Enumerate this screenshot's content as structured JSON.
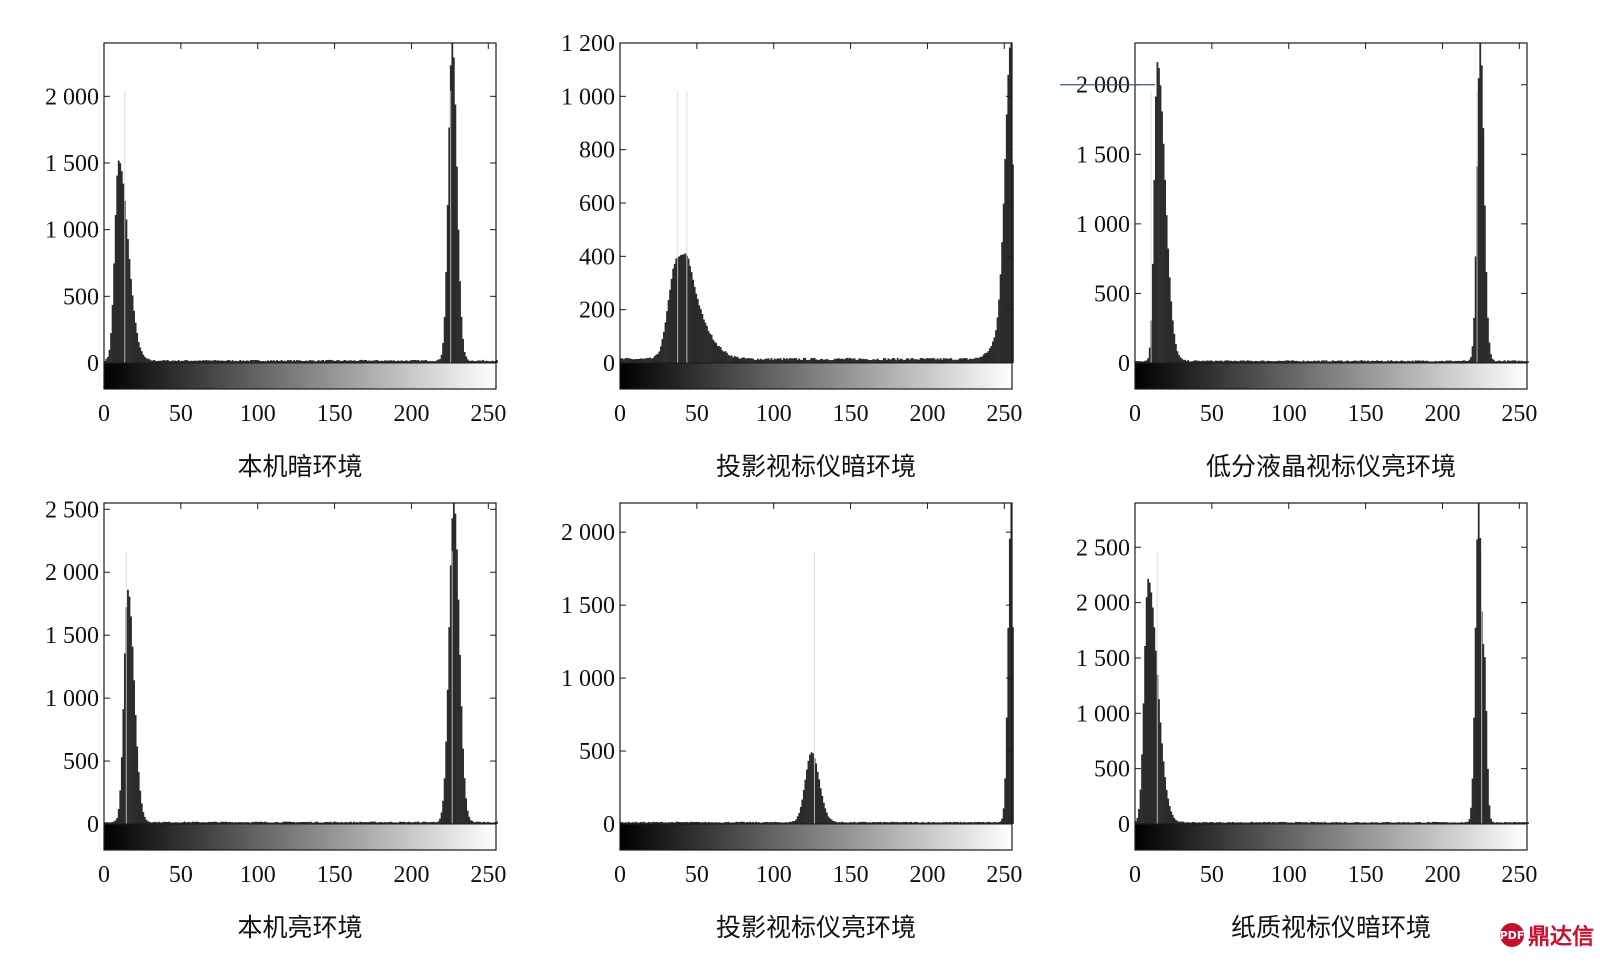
{
  "figure": {
    "watermark": "鼎达信",
    "watermark_logo_text": "PDF"
  },
  "chart_data": [
    {
      "type": "histogram",
      "caption": "本机暗环境",
      "xlim": [
        0,
        255
      ],
      "ylim": [
        0,
        2400
      ],
      "xticks": [
        0,
        50,
        100,
        150,
        200,
        250
      ],
      "xtick_labels": [
        "0",
        "50",
        "100",
        "150",
        "200",
        "250"
      ],
      "yticks": [
        0,
        500,
        1000,
        1500,
        2000
      ],
      "ytick_labels": [
        "0",
        "500",
        "1 000",
        "1 500",
        "2 000"
      ],
      "grayscale_colorbar": true,
      "grid": false,
      "baseline_level": 18,
      "peaks": [
        {
          "center": 9,
          "height": 1500,
          "width_left": 2.5,
          "width_right": 6
        },
        {
          "center": 226,
          "height": 2400,
          "width_left": 2.5,
          "width_right": 3
        }
      ],
      "light_lines": [
        13,
        225
      ]
    },
    {
      "type": "histogram",
      "caption": "投影视标仪暗环境",
      "xlim": [
        0,
        255
      ],
      "ylim": [
        0,
        1200
      ],
      "xticks": [
        0,
        50,
        100,
        150,
        200,
        250
      ],
      "xtick_labels": [
        "0",
        "50",
        "100",
        "150",
        "200",
        "250"
      ],
      "yticks": [
        0,
        200,
        400,
        600,
        800,
        1000,
        1200
      ],
      "ytick_labels": [
        "0",
        "200",
        "400",
        "600",
        "800",
        "1 000",
        "1 200"
      ],
      "grayscale_colorbar": true,
      "grid": false,
      "baseline_level": 15,
      "peaks": [
        {
          "center": 36,
          "height": 360,
          "width_left": 5,
          "width_right": 8
        },
        {
          "center": 45,
          "height": 160,
          "width_left": 4,
          "width_right": 12
        },
        {
          "center": 254,
          "height": 1200,
          "width_left": 4,
          "width_right": 1
        },
        {
          "center": 246,
          "height": 60,
          "width_left": 6,
          "width_right": 3
        }
      ],
      "light_lines": [
        37,
        43
      ]
    },
    {
      "type": "histogram",
      "caption": "低分液晶视标仪亮环境",
      "xlim": [
        0,
        255
      ],
      "ylim": [
        0,
        2300
      ],
      "xticks": [
        0,
        50,
        100,
        150,
        200,
        250
      ],
      "xtick_labels": [
        "0",
        "50",
        "100",
        "150",
        "200",
        "250"
      ],
      "yticks": [
        0,
        500,
        1000,
        1500,
        2000
      ],
      "ytick_labels": [
        "0",
        "500",
        "1 000",
        "1 500",
        "2 000"
      ],
      "grayscale_colorbar": true,
      "grid": false,
      "baseline_level": 15,
      "peaks": [
        {
          "center": 14,
          "height": 2150,
          "width_left": 2,
          "width_right": 5
        },
        {
          "center": 224,
          "height": 2300,
          "width_left": 2,
          "width_right": 2.5
        }
      ],
      "light_lines": [
        10,
        222
      ],
      "reference_line_y": 2000
    },
    {
      "type": "histogram",
      "caption": "本机亮环境",
      "xlim": [
        0,
        255
      ],
      "ylim": [
        0,
        2550
      ],
      "xticks": [
        0,
        50,
        100,
        150,
        200,
        250
      ],
      "xtick_labels": [
        "0",
        "50",
        "100",
        "150",
        "200",
        "250"
      ],
      "yticks": [
        0,
        500,
        1000,
        1500,
        2000,
        2500
      ],
      "ytick_labels": [
        "0",
        "500",
        "1 000",
        "1 500",
        "2 000",
        "2 500"
      ],
      "grayscale_colorbar": true,
      "grid": false,
      "baseline_level": 15,
      "peaks": [
        {
          "center": 15,
          "height": 1850,
          "width_left": 2.5,
          "width_right": 4
        },
        {
          "center": 227,
          "height": 2550,
          "width_left": 3,
          "width_right": 3.5
        }
      ],
      "light_lines": [
        14,
        226
      ]
    },
    {
      "type": "histogram",
      "caption": "投影视标仪亮环境",
      "xlim": [
        0,
        255
      ],
      "ylim": [
        0,
        2200
      ],
      "xticks": [
        0,
        50,
        100,
        150,
        200,
        250
      ],
      "xtick_labels": [
        "0",
        "50",
        "100",
        "150",
        "200",
        "250"
      ],
      "yticks": [
        0,
        500,
        1000,
        1500,
        2000
      ],
      "ytick_labels": [
        "0",
        "500",
        "1 000",
        "1 500",
        "2 000"
      ],
      "grayscale_colorbar": true,
      "grid": false,
      "baseline_level": 12,
      "peaks": [
        {
          "center": 124,
          "height": 480,
          "width_left": 4,
          "width_right": 5
        },
        {
          "center": 254,
          "height": 2200,
          "width_left": 2,
          "width_right": 1
        }
      ],
      "light_lines": [
        126
      ]
    },
    {
      "type": "histogram",
      "caption": "纸质视标仪暗环境",
      "xlim": [
        0,
        255
      ],
      "ylim": [
        0,
        2900
      ],
      "xticks": [
        0,
        50,
        100,
        150,
        200,
        250
      ],
      "xtick_labels": [
        "0",
        "50",
        "100",
        "150",
        "200",
        "250"
      ],
      "yticks": [
        0,
        500,
        1000,
        1500,
        2000,
        2500
      ],
      "ytick_labels": [
        "0",
        "500",
        "1 000",
        "1 500",
        "2 000",
        "2 500"
      ],
      "grayscale_colorbar": true,
      "grid": false,
      "baseline_level": 15,
      "peaks": [
        {
          "center": 8,
          "height": 2200,
          "width_left": 2.5,
          "width_right": 6
        },
        {
          "center": 223,
          "height": 2900,
          "width_left": 2,
          "width_right": 2
        },
        {
          "center": 227,
          "height": 1100,
          "width_left": 1,
          "width_right": 1.5
        }
      ],
      "light_lines": [
        14,
        225
      ]
    }
  ]
}
